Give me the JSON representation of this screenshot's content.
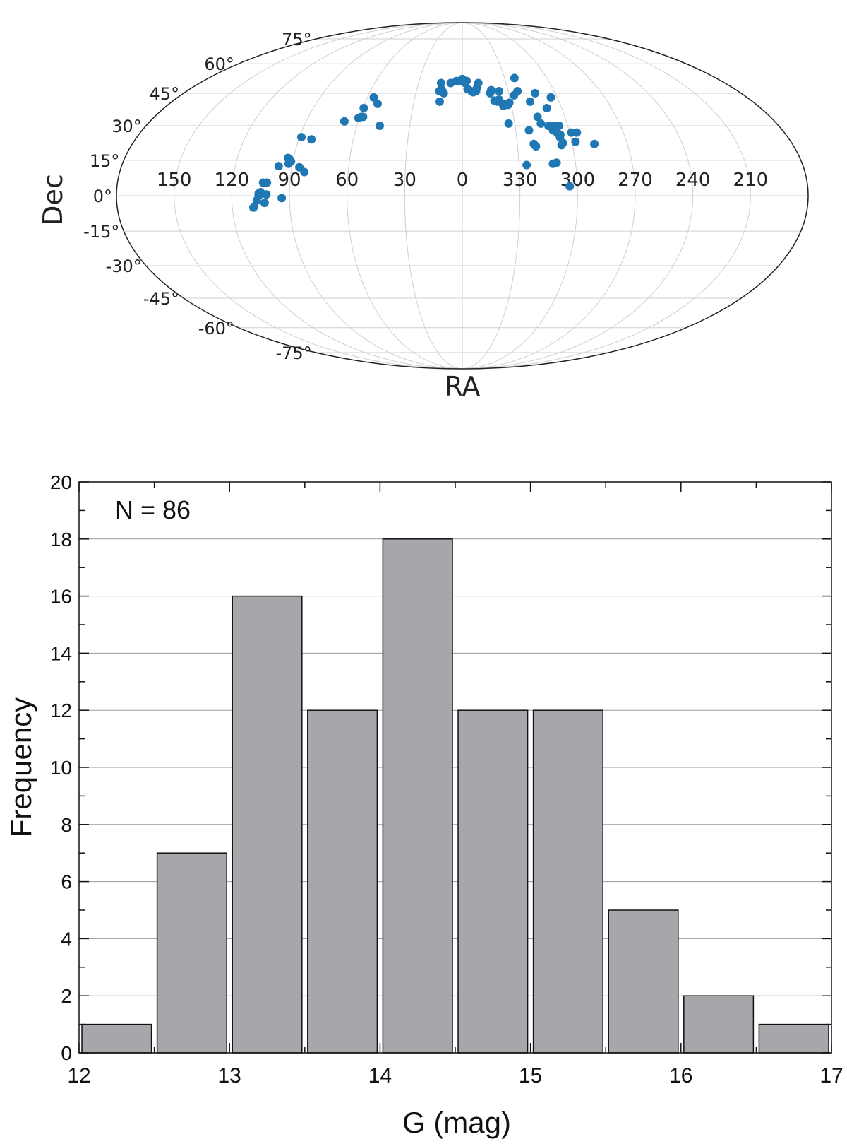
{
  "chart_data": [
    {
      "type": "scatter",
      "projection": "mollweide",
      "xlabel": "RA",
      "ylabel": "Dec",
      "ra_ticks": [
        "150",
        "120",
        "90",
        "60",
        "30",
        "0",
        "330",
        "300",
        "270",
        "240",
        "210"
      ],
      "dec_ticks": [
        "75°",
        "60°",
        "45°",
        "30°",
        "15°",
        "0°",
        "-15°",
        "-30°",
        "-45°",
        "-60°",
        "-75°"
      ],
      "grid": true,
      "marker_color": "#1f77b4",
      "points_deg": [
        [
          109,
          -5
        ],
        [
          108.5,
          -4.5
        ],
        [
          107,
          -2
        ],
        [
          106,
          0
        ],
        [
          106,
          1
        ],
        [
          105,
          1.5
        ],
        [
          104,
          5.5
        ],
        [
          103,
          -3
        ],
        [
          102,
          0.5
        ],
        [
          102,
          5.5
        ],
        [
          97,
          12.5
        ],
        [
          94,
          -1
        ],
        [
          93,
          16
        ],
        [
          92,
          13.5
        ],
        [
          92,
          15.5
        ],
        [
          91,
          14.5
        ],
        [
          89,
          25
        ],
        [
          86,
          12
        ],
        [
          83,
          24
        ],
        [
          83,
          10
        ],
        [
          68,
          32
        ],
        [
          60.5,
          33.5
        ],
        [
          59.5,
          38
        ],
        [
          59,
          34
        ],
        [
          58,
          34
        ],
        [
          56,
          43
        ],
        [
          52,
          40
        ],
        [
          47,
          30
        ],
        [
          15,
          46
        ],
        [
          14,
          47
        ],
        [
          14.5,
          50
        ],
        [
          14,
          41
        ],
        [
          13,
          46
        ],
        [
          12,
          45
        ],
        [
          8,
          50
        ],
        [
          4,
          51
        ],
        [
          2,
          51
        ],
        [
          0,
          52
        ],
        [
          -2,
          50
        ],
        [
          -3,
          51
        ],
        [
          -3.5,
          47
        ],
        [
          -6,
          46
        ],
        [
          -7,
          45.5
        ],
        [
          -9,
          46
        ],
        [
          -10,
          48
        ],
        [
          -11,
          50
        ],
        [
          -18,
          45
        ],
        [
          -19,
          46.5
        ],
        [
          -20,
          41.5
        ],
        [
          -22,
          41
        ],
        [
          -23,
          42
        ],
        [
          -24,
          46
        ],
        [
          -25,
          39
        ],
        [
          -26,
          40
        ],
        [
          -26.5,
          31
        ],
        [
          -28,
          39.5
        ],
        [
          -29,
          40.5
        ],
        [
          -33,
          44
        ],
        [
          -36,
          46
        ],
        [
          -37,
          52.5
        ],
        [
          -37.5,
          28
        ],
        [
          -34,
          13
        ],
        [
          -39,
          22
        ],
        [
          -40,
          21
        ],
        [
          -42,
          41
        ],
        [
          -44,
          34
        ],
        [
          -45,
          31
        ],
        [
          -47,
          45
        ],
        [
          -48,
          13.5
        ],
        [
          -49,
          30
        ],
        [
          -50,
          14
        ],
        [
          -51,
          28
        ],
        [
          -51,
          38
        ],
        [
          -52,
          30
        ],
        [
          -53,
          27
        ],
        [
          -54,
          25
        ],
        [
          -54,
          21.5
        ],
        [
          -54.5,
          26
        ],
        [
          -55,
          22.5
        ],
        [
          -55,
          30
        ],
        [
          -56,
          43
        ],
        [
          -56,
          4
        ],
        [
          -61,
          27
        ],
        [
          -62,
          23
        ],
        [
          -64,
          27
        ],
        [
          -72,
          22
        ]
      ]
    },
    {
      "type": "bar",
      "title": "",
      "annotation": "N = 86",
      "xlabel": "G (mag)",
      "ylabel": "Frequency",
      "bin_edges": [
        12,
        12.5,
        13,
        13.5,
        14,
        14.5,
        15,
        15.5,
        16,
        16.5,
        17
      ],
      "values": [
        1,
        7,
        16,
        12,
        18,
        12,
        12,
        5,
        2,
        1
      ],
      "xlim": [
        12,
        17
      ],
      "ylim": [
        0,
        20
      ],
      "x_ticks": [
        "12",
        "13",
        "14",
        "15",
        "16",
        "17"
      ],
      "y_ticks": [
        "0",
        "2",
        "4",
        "6",
        "8",
        "10",
        "12",
        "14",
        "16",
        "18",
        "20"
      ],
      "bar_color": "#a7a7ab",
      "grid": true
    }
  ]
}
